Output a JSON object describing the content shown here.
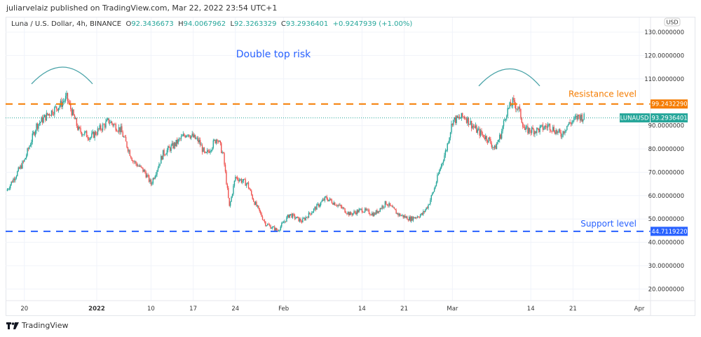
{
  "publish_line": "juliarvelaiz published on TradingView.com, Mar 22, 2022 23:54 UTC+1",
  "legend": {
    "symbol": "Luna / U.S. Dollar, 4h, BINANCE",
    "o_label": "O",
    "o": "92.3436673",
    "h_label": "H",
    "h": "94.0067962",
    "l_label": "L",
    "l": "92.3263329",
    "c_label": "C",
    "c": "93.2936401",
    "change": "+0.9247939 (+1.00%)"
  },
  "currency": "USD",
  "annotations": {
    "title": "Double top risk",
    "resistance": "Resistance level",
    "support": "Support level"
  },
  "price_tags": {
    "resistance": "99.2432290",
    "support": "44.7119220",
    "symbol": "LUNAUSD",
    "last": "93.2936401"
  },
  "colors": {
    "up": "#26a69a",
    "down": "#ef5350",
    "resistance": "#f57c00",
    "support": "#2962ff",
    "arc": "#4aa3a8",
    "title": "#2962ff"
  },
  "footer": "TradingView",
  "chart_data": {
    "type": "candlestick",
    "y_ticks": [
      "130.0000000",
      "120.0000000",
      "110.0000000",
      "90.0000000",
      "80.0000000",
      "70.0000000",
      "60.0000000",
      "50.0000000",
      "40.0000000",
      "30.0000000",
      "20.0000000"
    ],
    "y_tick_values": [
      130,
      120,
      110,
      90,
      80,
      70,
      60,
      50,
      40,
      30,
      20
    ],
    "x_ticks": [
      {
        "label": "20",
        "day": 3
      },
      {
        "label": "2022",
        "day": 15
      },
      {
        "label": "10",
        "day": 24
      },
      {
        "label": "17",
        "day": 31
      },
      {
        "label": "24",
        "day": 38
      },
      {
        "label": "Feb",
        "day": 46
      },
      {
        "label": "14",
        "day": 59
      },
      {
        "label": "21",
        "day": 66
      },
      {
        "label": "Mar",
        "day": 74
      },
      {
        "label": "14",
        "day": 87
      },
      {
        "label": "21",
        "day": 94
      },
      {
        "label": "Apr",
        "day": 105
      }
    ],
    "resistance": 99.243229,
    "support": 44.711922,
    "last": 93.2936401,
    "price_path": [
      [
        0,
        62
      ],
      [
        3,
        75
      ],
      [
        5,
        90
      ],
      [
        7,
        95
      ],
      [
        9,
        99
      ],
      [
        10,
        102
      ],
      [
        12,
        88
      ],
      [
        14,
        85
      ],
      [
        17,
        92
      ],
      [
        19,
        88
      ],
      [
        21,
        75
      ],
      [
        23,
        70
      ],
      [
        24,
        65
      ],
      [
        26,
        78
      ],
      [
        28,
        82
      ],
      [
        30,
        87
      ],
      [
        32,
        83
      ],
      [
        33,
        77
      ],
      [
        35,
        85
      ],
      [
        36,
        77
      ],
      [
        37,
        55
      ],
      [
        38,
        68
      ],
      [
        40,
        65
      ],
      [
        41,
        58
      ],
      [
        43,
        48
      ],
      [
        45,
        45
      ],
      [
        47,
        52
      ],
      [
        49,
        49
      ],
      [
        51,
        54
      ],
      [
        53,
        59
      ],
      [
        55,
        56
      ],
      [
        57,
        52
      ],
      [
        59,
        54
      ],
      [
        61,
        52
      ],
      [
        63,
        57
      ],
      [
        65,
        52
      ],
      [
        67,
        50
      ],
      [
        69,
        52
      ],
      [
        70,
        56
      ],
      [
        71,
        63
      ],
      [
        72,
        72
      ],
      [
        73,
        80
      ],
      [
        74,
        92
      ],
      [
        76,
        94
      ],
      [
        78,
        88
      ],
      [
        80,
        84
      ],
      [
        81,
        80
      ],
      [
        82,
        86
      ],
      [
        83,
        96
      ],
      [
        84,
        100
      ],
      [
        85,
        97
      ],
      [
        86,
        88
      ],
      [
        88,
        88
      ],
      [
        90,
        90
      ],
      [
        92,
        86
      ],
      [
        93,
        90
      ],
      [
        95,
        94
      ],
      [
        96,
        93.29
      ]
    ]
  }
}
